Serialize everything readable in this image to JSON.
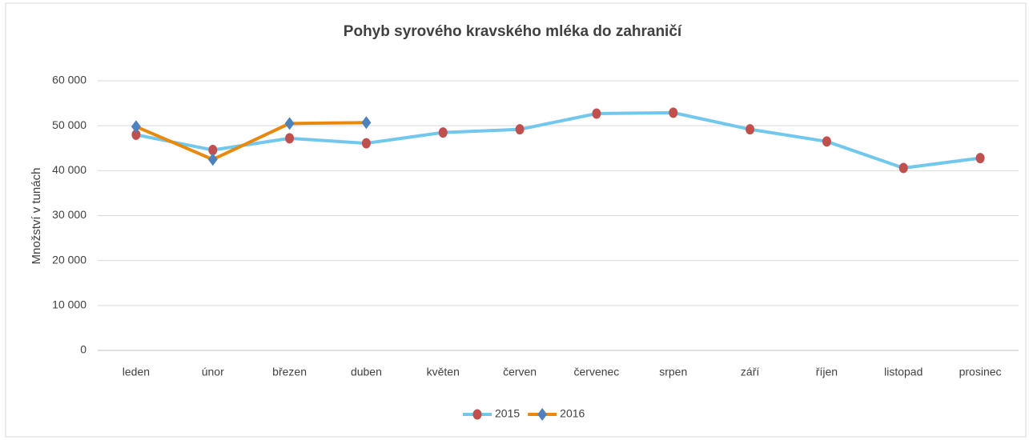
{
  "chart_data": {
    "type": "line",
    "title": "Pohyb syrového kravského mléka do zahraničí",
    "y_label": "Množství v tunách",
    "categories": [
      "leden",
      "únor",
      "březen",
      "duben",
      "květen",
      "červen",
      "červenec",
      "srpen",
      "září",
      "říjen",
      "listopad",
      "prosinec"
    ],
    "series": [
      {
        "name": "2015",
        "color": "#72c7ec",
        "marker_color": "#c0504d",
        "marker": "circle",
        "values": [
          48000,
          44600,
          47200,
          46100,
          48500,
          49200,
          52700,
          52900,
          49200,
          46500,
          40600,
          42800
        ]
      },
      {
        "name": "2016",
        "color": "#e8890c",
        "marker_color": "#4f81bd",
        "marker": "diamond",
        "values": [
          49800,
          42500,
          50500,
          50700,
          null,
          null,
          null,
          null,
          null,
          null,
          null,
          null
        ]
      }
    ],
    "ylim": [
      0,
      60000
    ],
    "yticks": [
      {
        "value": 0,
        "label": "0"
      },
      {
        "value": 10000,
        "label": "10 000"
      },
      {
        "value": 20000,
        "label": "20 000"
      },
      {
        "value": 30000,
        "label": "30 000"
      },
      {
        "value": 40000,
        "label": "40 000"
      },
      {
        "value": 50000,
        "label": "50 000"
      },
      {
        "value": 60000,
        "label": "60 000"
      }
    ],
    "grid": true,
    "legend": "bottom"
  }
}
